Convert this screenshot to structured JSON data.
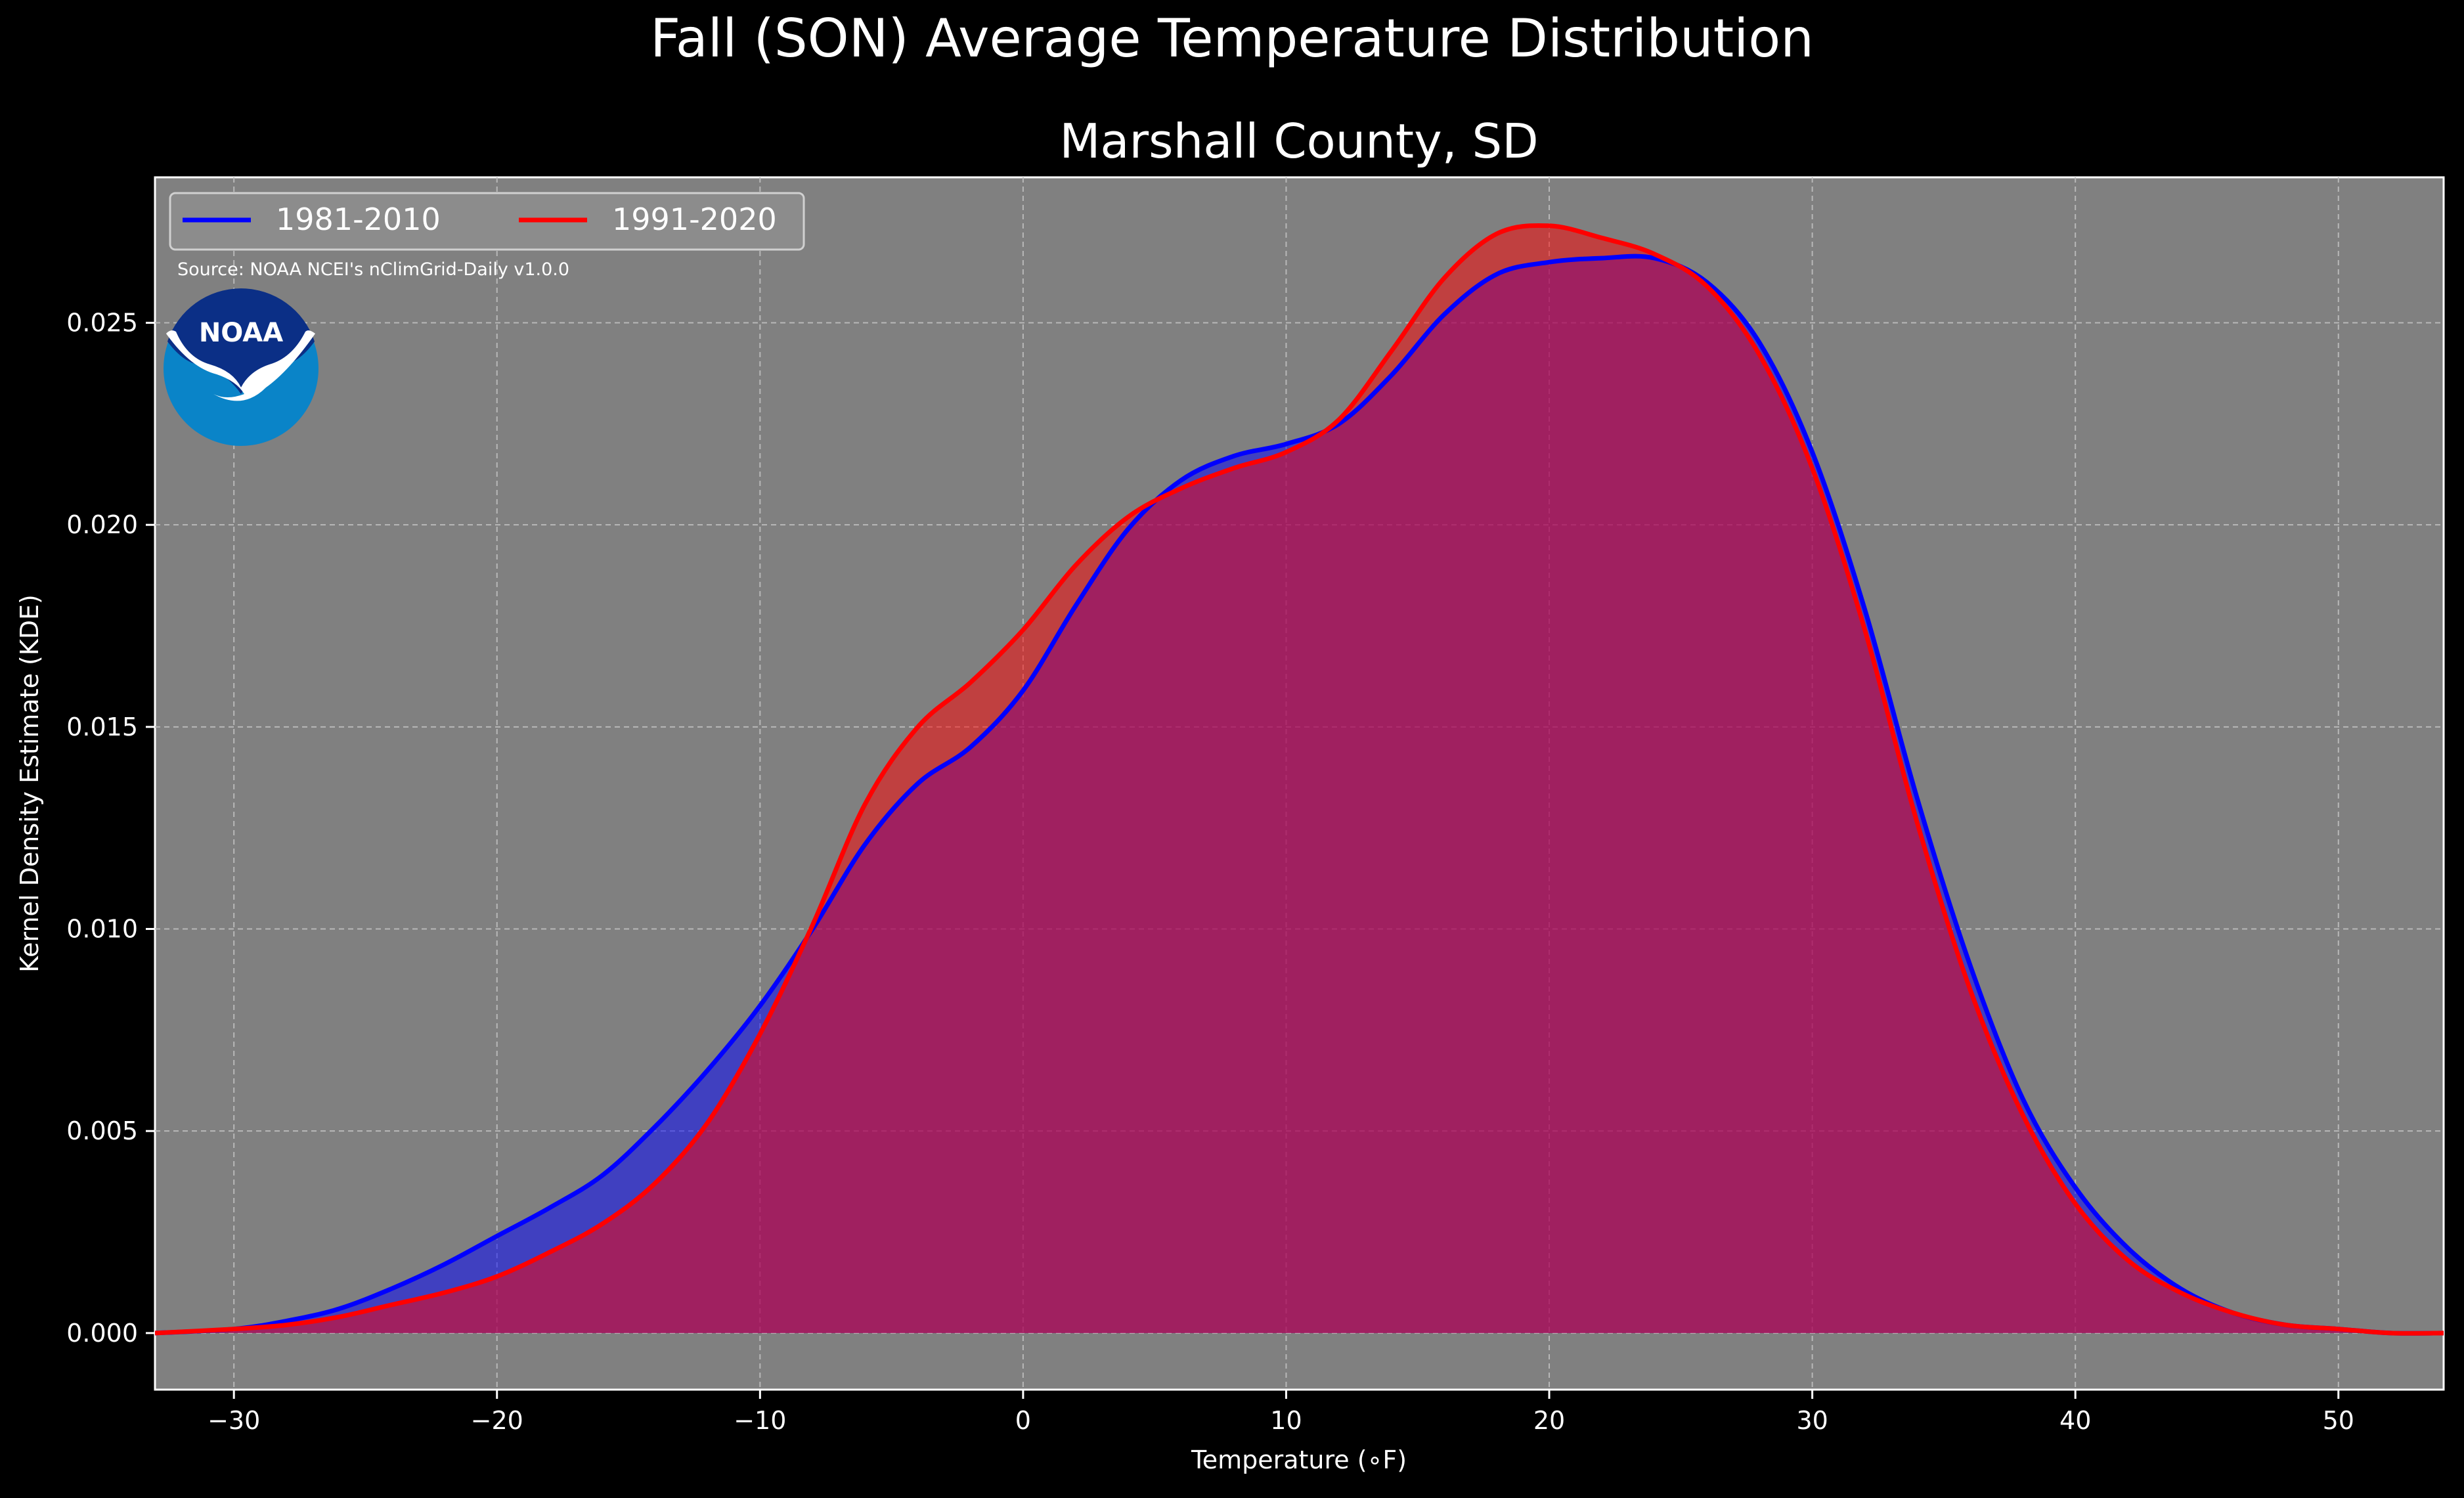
{
  "chart_data": {
    "type": "area",
    "title": "Fall (SON) Average Temperature Distribution",
    "subtitle": "Marshall County, SD",
    "xlabel": "Temperature (∘F)",
    "ylabel": "Kernel Density Estimate (KDE)",
    "xlim": [
      -33,
      54
    ],
    "ylim": [
      -0.0014,
      0.0286
    ],
    "xticks": [
      -30,
      -20,
      -10,
      0,
      10,
      20,
      30,
      40,
      50
    ],
    "xtick_labels": [
      "−30",
      "−20",
      "−10",
      "0",
      "10",
      "20",
      "30",
      "40",
      "50"
    ],
    "yticks": [
      0,
      0.005,
      0.01,
      0.015,
      0.02,
      0.025
    ],
    "ytick_labels": [
      "0.000",
      "0.005",
      "0.010",
      "0.015",
      "0.020",
      "0.025"
    ],
    "grid": true,
    "legend_position": "top-left",
    "source_note": "Source: NOAA NCEI's nClimGrid-Daily v1.0.0",
    "logo_text": "NOAA",
    "series": [
      {
        "name": "1981-2010",
        "color": "#0000ff",
        "points": [
          [
            -33,
            0
          ],
          [
            -30,
            0.0001
          ],
          [
            -28,
            0.0003
          ],
          [
            -26,
            0.0006
          ],
          [
            -24,
            0.0011
          ],
          [
            -22,
            0.0017
          ],
          [
            -20,
            0.0024
          ],
          [
            -18,
            0.0031
          ],
          [
            -16,
            0.0039
          ],
          [
            -14,
            0.0051
          ],
          [
            -12,
            0.0065
          ],
          [
            -10,
            0.0081
          ],
          [
            -8,
            0.01
          ],
          [
            -6,
            0.0121
          ],
          [
            -4,
            0.0136
          ],
          [
            -2,
            0.0145
          ],
          [
            0,
            0.0159
          ],
          [
            2,
            0.018
          ],
          [
            4,
            0.0199
          ],
          [
            6,
            0.0211
          ],
          [
            8,
            0.0217
          ],
          [
            10,
            0.022
          ],
          [
            12,
            0.0225
          ],
          [
            14,
            0.0237
          ],
          [
            16,
            0.0252
          ],
          [
            18,
            0.0262
          ],
          [
            20,
            0.0265
          ],
          [
            22,
            0.0266
          ],
          [
            24,
            0.0266
          ],
          [
            26,
            0.026
          ],
          [
            28,
            0.0245
          ],
          [
            30,
            0.0218
          ],
          [
            32,
            0.0179
          ],
          [
            34,
            0.0132
          ],
          [
            36,
            0.0091
          ],
          [
            38,
            0.0058
          ],
          [
            40,
            0.0036
          ],
          [
            42,
            0.0021
          ],
          [
            44,
            0.0011
          ],
          [
            46,
            0.0005
          ],
          [
            48,
            0.0002
          ],
          [
            50,
            0.0001
          ],
          [
            52,
            0
          ],
          [
            54,
            0
          ]
        ]
      },
      {
        "name": "1991-2020",
        "color": "#ff0000",
        "points": [
          [
            -33,
            0
          ],
          [
            -30,
            0.0001
          ],
          [
            -28,
            0.0002
          ],
          [
            -26,
            0.0004
          ],
          [
            -24,
            0.0007
          ],
          [
            -22,
            0.001
          ],
          [
            -20,
            0.0014
          ],
          [
            -18,
            0.002
          ],
          [
            -16,
            0.0027
          ],
          [
            -14,
            0.0037
          ],
          [
            -12,
            0.0052
          ],
          [
            -10,
            0.0074
          ],
          [
            -8,
            0.0101
          ],
          [
            -6,
            0.0131
          ],
          [
            -4,
            0.015
          ],
          [
            -2,
            0.0161
          ],
          [
            0,
            0.0174
          ],
          [
            2,
            0.019
          ],
          [
            4,
            0.0202
          ],
          [
            6,
            0.0209
          ],
          [
            8,
            0.0214
          ],
          [
            10,
            0.0218
          ],
          [
            12,
            0.0226
          ],
          [
            14,
            0.0243
          ],
          [
            16,
            0.0261
          ],
          [
            18,
            0.0272
          ],
          [
            20,
            0.0274
          ],
          [
            22,
            0.0271
          ],
          [
            24,
            0.0267
          ],
          [
            26,
            0.0259
          ],
          [
            28,
            0.0242
          ],
          [
            30,
            0.0214
          ],
          [
            32,
            0.0174
          ],
          [
            34,
            0.0126
          ],
          [
            36,
            0.0085
          ],
          [
            38,
            0.0054
          ],
          [
            40,
            0.0032
          ],
          [
            42,
            0.0018
          ],
          [
            44,
            0.001
          ],
          [
            46,
            0.0005
          ],
          [
            48,
            0.0002
          ],
          [
            50,
            0.0001
          ],
          [
            52,
            0
          ],
          [
            54,
            0
          ]
        ]
      }
    ]
  }
}
